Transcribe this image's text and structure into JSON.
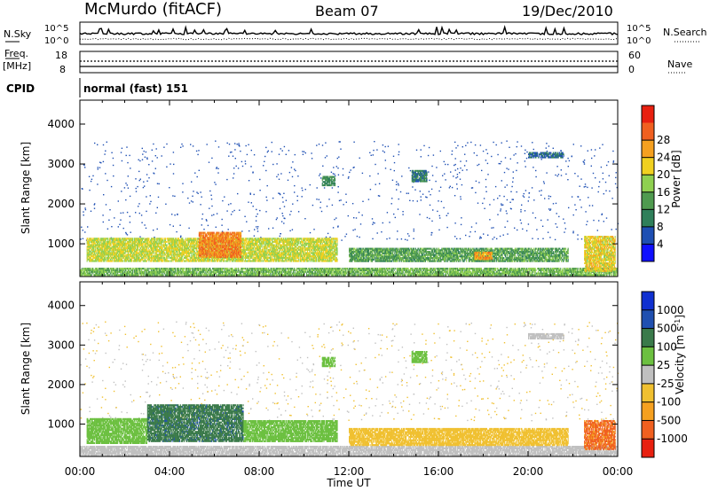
{
  "header": {
    "station": "McMurdo (fitACF)",
    "beam": "Beam 07",
    "date": "19/Dec/2010"
  },
  "noise_panel": {
    "left_label": "N.Sky",
    "left_ticks": [
      "10^5",
      "10^0"
    ],
    "right_label": "N.Search",
    "right_ticks": [
      "10^5",
      "10^0"
    ]
  },
  "freq_panel": {
    "left_label_1": "Freq.",
    "left_label_2": "[MHz]",
    "left_ticks": [
      "18",
      "8"
    ],
    "right_label": "Nave",
    "right_ticks": [
      "60",
      "0"
    ]
  },
  "cpid_panel": {
    "label": "CPID",
    "mode": "normal (fast) 151"
  },
  "chart_data": [
    {
      "type": "heatmap",
      "quantity": "Power",
      "ylabel": "Slant Range [km]",
      "xlabel": "Time UT",
      "x_ticks": [
        "00:00",
        "04:00",
        "08:00",
        "12:00",
        "16:00",
        "20:00",
        "00:00"
      ],
      "x_range_hours": [
        0,
        24
      ],
      "y_ticks": [
        1000,
        2000,
        3000,
        4000
      ],
      "ylim": [
        180,
        4600
      ],
      "colorbar_label": "Power [dB]",
      "colorbar_ticks": [
        4,
        8,
        12,
        16,
        20,
        24,
        28
      ],
      "colorbar_colors": [
        "#1010ff",
        "#1e4fb3",
        "#2f7f5a",
        "#4f9a4f",
        "#8fd050",
        "#f0d020",
        "#f5a020",
        "#f06020",
        "#e82010"
      ],
      "echo_bands_hours_km": [
        {
          "t0": 0.0,
          "t1": 24.0,
          "r0": 200,
          "r1": 400,
          "level": 16
        },
        {
          "t0": 0.3,
          "t1": 11.5,
          "r0": 550,
          "r1": 1150,
          "level": 20
        },
        {
          "t0": 5.3,
          "t1": 7.2,
          "r0": 650,
          "r1": 1300,
          "level": 28
        },
        {
          "t0": 12.0,
          "t1": 21.8,
          "r0": 550,
          "r1": 900,
          "level": 14
        },
        {
          "t0": 17.6,
          "t1": 18.4,
          "r0": 600,
          "r1": 800,
          "level": 26
        },
        {
          "t0": 22.5,
          "t1": 23.9,
          "r0": 300,
          "r1": 1200,
          "level": 22
        },
        {
          "t0": 10.8,
          "t1": 11.4,
          "r0": 2450,
          "r1": 2700,
          "level": 12
        },
        {
          "t0": 14.8,
          "t1": 15.5,
          "r0": 2550,
          "r1": 2850,
          "level": 10
        },
        {
          "t0": 20.0,
          "t1": 21.6,
          "r0": 3150,
          "r1": 3300,
          "level": 8
        }
      ]
    },
    {
      "type": "heatmap",
      "quantity": "Velocity",
      "ylabel": "Slant Range [km]",
      "xlabel": "Time UT",
      "x_ticks": [
        "00:00",
        "04:00",
        "08:00",
        "12:00",
        "16:00",
        "20:00",
        "00:00"
      ],
      "x_range_hours": [
        0,
        24
      ],
      "y_ticks": [
        1000,
        2000,
        3000,
        4000
      ],
      "ylim": [
        180,
        4600
      ],
      "colorbar_label": "Velocity [m s^-1]",
      "colorbar_ticks": [
        1000,
        500,
        100,
        25,
        -25,
        -100,
        -500,
        -1000
      ],
      "colorbar_colors": [
        "#1030d0",
        "#2050b0",
        "#3a7a4a",
        "#6cc040",
        "#c0c0c0",
        "#f0c030",
        "#f5a020",
        "#f06020",
        "#e82010"
      ],
      "echo_bands_hours_km": [
        {
          "t0": 0.0,
          "t1": 24.0,
          "r0": 200,
          "r1": 450,
          "level": 0
        },
        {
          "t0": 0.3,
          "t1": 3.0,
          "r0": 500,
          "r1": 1150,
          "level": 75
        },
        {
          "t0": 3.0,
          "t1": 7.3,
          "r0": 550,
          "r1": 1500,
          "level": 400
        },
        {
          "t0": 7.3,
          "t1": 11.5,
          "r0": 550,
          "r1": 1100,
          "level": 75
        },
        {
          "t0": 12.0,
          "t1": 21.8,
          "r0": 450,
          "r1": 900,
          "level": -60
        },
        {
          "t0": 22.5,
          "t1": 23.9,
          "r0": 350,
          "r1": 1100,
          "level": -600
        },
        {
          "t0": 10.8,
          "t1": 11.4,
          "r0": 2450,
          "r1": 2700,
          "level": 75
        },
        {
          "t0": 14.8,
          "t1": 15.5,
          "r0": 2550,
          "r1": 2850,
          "level": 75
        },
        {
          "t0": 20.0,
          "t1": 21.6,
          "r0": 3150,
          "r1": 3300,
          "level": 0
        }
      ]
    }
  ]
}
